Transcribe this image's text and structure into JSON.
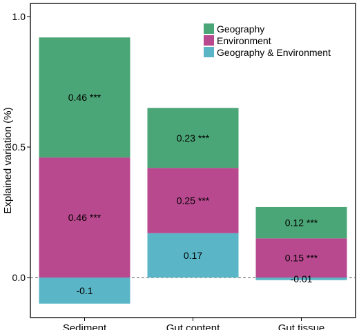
{
  "chart_data": {
    "type": "bar",
    "stacked": true,
    "categories": [
      "Sediment",
      "Gut content",
      "Gut tissue"
    ],
    "series": [
      {
        "name": "Geography & Environment",
        "color": "#5ab5c7",
        "values": [
          -0.1,
          0.17,
          -0.01
        ],
        "labels": [
          "-0.1",
          "0.17",
          "-0.01"
        ]
      },
      {
        "name": "Environment",
        "color": "#b8498f",
        "values": [
          0.46,
          0.25,
          0.15
        ],
        "labels": [
          "0.46 ***",
          "0.25 ***",
          "0.15 ***"
        ]
      },
      {
        "name": "Geography",
        "color": "#4aa676",
        "values": [
          0.46,
          0.23,
          0.12
        ],
        "labels": [
          "0.46 ***",
          "0.23 ***",
          "0.12 ***"
        ]
      }
    ],
    "legend_order": [
      "Geography",
      "Environment",
      "Geography & Environment"
    ],
    "ylabel": "Explained variation (%)",
    "xlabel": "",
    "title": "",
    "ylim": [
      -0.15,
      1.03
    ],
    "yticks": [
      0.0,
      0.5,
      1.0
    ],
    "ytick_labels": [
      "0.0",
      "0.5",
      "1.0"
    ],
    "zero_line": "dashed",
    "grid": false,
    "legend_position": "top-right"
  }
}
